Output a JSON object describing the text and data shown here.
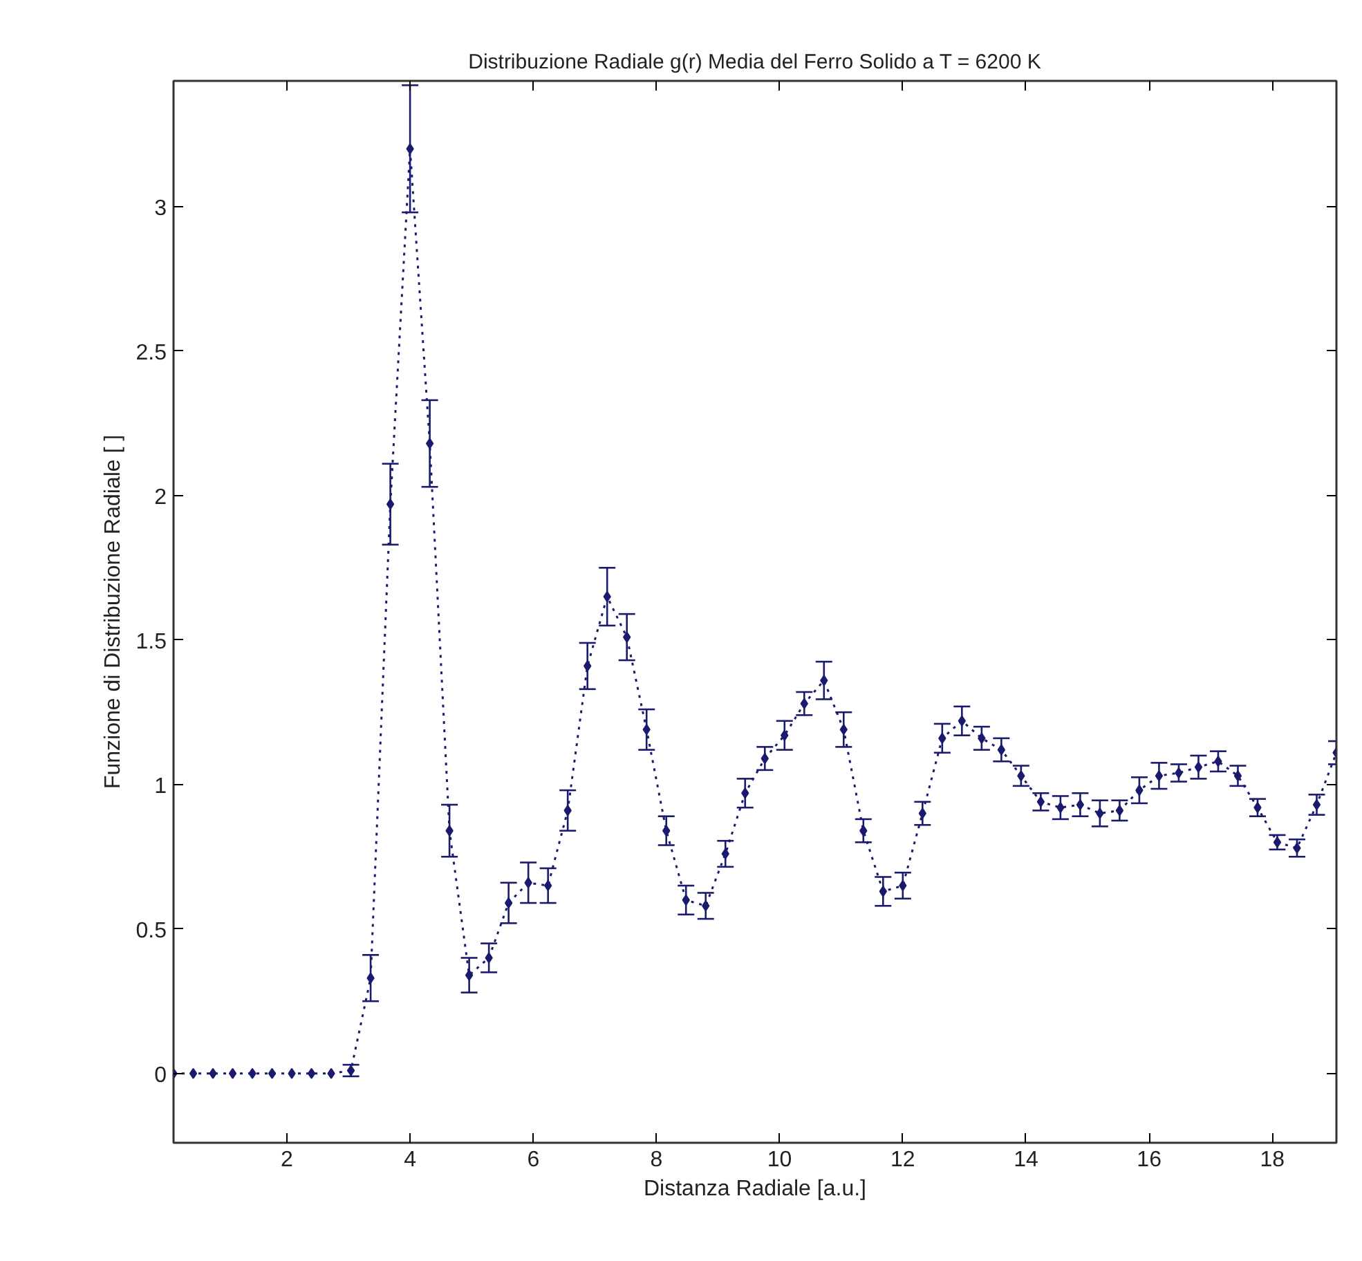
{
  "chart_data": {
    "type": "line",
    "title": "Distribuzione Radiale g(r) Media del Ferro Solido a T = 6200 K",
    "xlabel": "Distanza Radiale [a.u.]",
    "ylabel": "Funzione di Distribuzione Radiale [ ]",
    "x": [
      0.16,
      0.48,
      0.8,
      1.12,
      1.44,
      1.76,
      2.08,
      2.4,
      2.72,
      3.04,
      3.36,
      3.68,
      4.0,
      4.32,
      4.64,
      4.96,
      5.28,
      5.6,
      5.92,
      6.24,
      6.56,
      6.88,
      7.2,
      7.52,
      7.84,
      8.16,
      8.48,
      8.8,
      9.12,
      9.44,
      9.76,
      10.08,
      10.4,
      10.72,
      11.04,
      11.36,
      11.68,
      12.0,
      12.32,
      12.64,
      12.96,
      13.28,
      13.6,
      13.92,
      14.24,
      14.56,
      14.88,
      15.2,
      15.52,
      15.84,
      16.16,
      16.48,
      16.8,
      17.12,
      17.44,
      17.76,
      18.08,
      18.4,
      18.72,
      19.04
    ],
    "series": [
      {
        "color": "#1a1a6e",
        "values": [
          0,
          0,
          0,
          0,
          0,
          0,
          0,
          0,
          0,
          0.01,
          0.33,
          1.97,
          3.2,
          2.18,
          0.84,
          0.34,
          0.4,
          0.59,
          0.66,
          0.65,
          0.91,
          1.41,
          1.65,
          1.51,
          1.19,
          0.84,
          0.6,
          0.58,
          0.76,
          0.97,
          1.09,
          1.17,
          1.28,
          1.36,
          1.19,
          0.84,
          0.63,
          0.65,
          0.9,
          1.16,
          1.22,
          1.16,
          1.12,
          1.03,
          0.94,
          0.92,
          0.93,
          0.9,
          0.91,
          0.98,
          1.03,
          1.04,
          1.06,
          1.08,
          1.03,
          0.92,
          0.8,
          0.78,
          0.93,
          1.11
        ],
        "errors": [
          null,
          null,
          null,
          null,
          null,
          null,
          null,
          null,
          null,
          0.02,
          0.08,
          0.14,
          0.22,
          0.15,
          0.09,
          0.06,
          0.05,
          0.07,
          0.07,
          0.06,
          0.07,
          0.08,
          0.1,
          0.08,
          0.07,
          0.05,
          0.05,
          0.045,
          0.045,
          0.05,
          0.04,
          0.05,
          0.04,
          0.065,
          0.06,
          0.04,
          0.05,
          0.045,
          0.04,
          0.05,
          0.05,
          0.04,
          0.04,
          0.035,
          0.03,
          0.04,
          0.04,
          0.045,
          0.035,
          0.045,
          0.045,
          0.03,
          0.04,
          0.035,
          0.035,
          0.03,
          0.025,
          0.03,
          0.035,
          0.04
        ]
      }
    ],
    "xlim": [
      0.16,
      19.04
    ],
    "xticks": [
      2,
      4,
      6,
      8,
      10,
      12,
      14,
      16,
      18
    ],
    "ylim": [
      -0.24,
      3.435
    ],
    "yticks": [
      0,
      0.5,
      1,
      1.5,
      2,
      2.5,
      3
    ],
    "grid": false,
    "marker": "diamond",
    "line_style": "dotted"
  }
}
